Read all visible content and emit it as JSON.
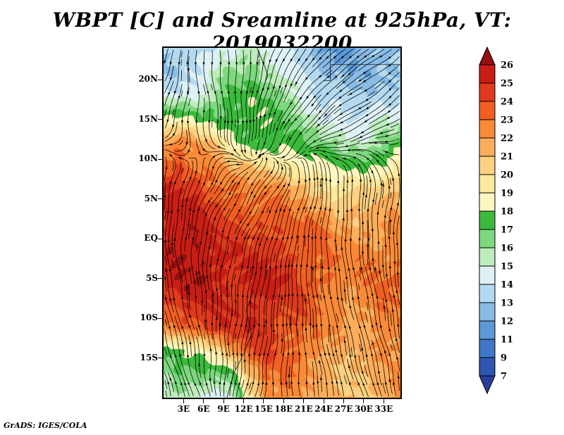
{
  "title": "WBPT [C] and Sreamline at 925hPa, VT: 2019032200",
  "footer": "GrADS: IGES/COLA",
  "chart_data": {
    "type": "heatmap",
    "title": "WBPT [C] and Sreamline at 925hPa, VT: 2019032200",
    "variable": "WBPT [C]",
    "overlay": "streamlines",
    "level": "925hPa",
    "valid_time": "2019032200",
    "x_ticks": [
      "3E",
      "6E",
      "9E",
      "12E",
      "15E",
      "18E",
      "21E",
      "24E",
      "27E",
      "30E",
      "33E"
    ],
    "x_tick_lons": [
      3,
      6,
      9,
      12,
      15,
      18,
      21,
      24,
      27,
      30,
      33
    ],
    "y_ticks": [
      "20N",
      "15N",
      "10N",
      "5N",
      "EQ",
      "5S",
      "10S",
      "15S"
    ],
    "y_tick_lats": [
      20,
      15,
      10,
      5,
      0,
      -5,
      -10,
      -15
    ],
    "lon_range": [
      0,
      35.5
    ],
    "lat_range": [
      -20,
      24
    ],
    "grid_on": false,
    "legend_position": "right",
    "colorbar": {
      "orientation": "vertical",
      "levels": [
        7,
        9,
        11,
        12,
        13,
        14,
        15,
        16,
        17,
        18,
        19,
        20,
        21,
        22,
        23,
        24,
        25,
        26
      ],
      "colors": [
        "#2b3f9b",
        "#2f57b0",
        "#3e77c8",
        "#5c99d8",
        "#88bce6",
        "#b4daf0",
        "#def2f6",
        "#bdecbd",
        "#7ed87e",
        "#3bba3c",
        "#fdf6bf",
        "#fee99c",
        "#fdd180",
        "#fcae5b",
        "#fa8a38",
        "#f15f23",
        "#e0391d",
        "#c91e15",
        "#941110"
      ]
    },
    "grid": {
      "note": "WBPT [C] field, rows top(24N) to bottom(20S), cols 0E to 35E",
      "values": [
        [
          13,
          13,
          13.5,
          14,
          15,
          15.5,
          15,
          14,
          13,
          12.5,
          12,
          12,
          12.5,
          12.5,
          12.5
        ],
        [
          13,
          13.5,
          14,
          15,
          16,
          16.5,
          16,
          15,
          14,
          13,
          12.5,
          12.5,
          12.5,
          13,
          13
        ],
        [
          14,
          14.5,
          15,
          16,
          17,
          17.5,
          17,
          16.5,
          15,
          14,
          13.5,
          13,
          13,
          13.5,
          14
        ],
        [
          18.5,
          18,
          17.5,
          17.5,
          17.5,
          17.5,
          17.5,
          17,
          16,
          15,
          14.5,
          14,
          14,
          14.5,
          15
        ],
        [
          22,
          22.5,
          21.5,
          20,
          18.5,
          17.5,
          17.5,
          17.5,
          17,
          16.5,
          16,
          15.5,
          15.5,
          16,
          17
        ],
        [
          23.5,
          24,
          23,
          22,
          21,
          20.5,
          20,
          19.5,
          19,
          18.5,
          17.5,
          17.5,
          17.5,
          18.5,
          19.5
        ],
        [
          24.5,
          25,
          24.5,
          23.5,
          23,
          22.5,
          22.5,
          22,
          21.5,
          20.5,
          19.5,
          19.5,
          20,
          20.5,
          21
        ],
        [
          25,
          25.5,
          25,
          24.5,
          24,
          23.5,
          23.5,
          23,
          22.5,
          22,
          21.5,
          21,
          21,
          21.5,
          21.5
        ],
        [
          25.5,
          26,
          25.5,
          25,
          24.5,
          24,
          24.5,
          24,
          23.5,
          23,
          22.5,
          22,
          22,
          22,
          22.5
        ],
        [
          25.5,
          26,
          26,
          25.5,
          25,
          24.5,
          25,
          24.5,
          24,
          23.5,
          23,
          22.5,
          22.5,
          22.5,
          23
        ],
        [
          24.5,
          25.5,
          26,
          25.5,
          25,
          25,
          25.5,
          25,
          24,
          23.5,
          23,
          22.5,
          22.5,
          23,
          23
        ],
        [
          24,
          24.5,
          25,
          25,
          24.5,
          25,
          25,
          24.5,
          24,
          23,
          22.5,
          22,
          22.5,
          23,
          23
        ],
        [
          23,
          23.5,
          24,
          24.5,
          24.5,
          25,
          24.5,
          24,
          23.5,
          23,
          22,
          21.5,
          22,
          22.5,
          23
        ],
        [
          17,
          17.5,
          18.5,
          20,
          22,
          23.5,
          24,
          23.5,
          23,
          22.5,
          21.5,
          21,
          21.5,
          22,
          22.5
        ],
        [
          16,
          16.5,
          16.5,
          16,
          17.5,
          21,
          23,
          23,
          22.5,
          22,
          21,
          21,
          21,
          21.5,
          22
        ],
        [
          16,
          16,
          15,
          13.5,
          14.5,
          19.5,
          22,
          22.5,
          22,
          21.5,
          21,
          21,
          21,
          21.5,
          22
        ]
      ]
    },
    "borders": [
      [
        [
          25,
          24
        ],
        [
          25,
          19.9
        ],
        [
          24,
          19.9
        ]
      ],
      [
        [
          25,
          21.9
        ],
        [
          35.5,
          21.9
        ]
      ],
      [
        [
          14,
          24
        ],
        [
          15.2,
          21.6
        ],
        [
          15.6,
          20.5
        ],
        [
          14.6,
          18.2
        ],
        [
          14.2,
          16.5
        ]
      ],
      [
        [
          9.5,
          -20
        ],
        [
          10.5,
          -17
        ],
        [
          12,
          -14.5
        ],
        [
          13.2,
          -12
        ],
        [
          12.4,
          -9
        ],
        [
          13.5,
          -6.5
        ]
      ]
    ],
    "flow": {
      "itcz_lat": 11,
      "north_regime": "northeasterly",
      "south_regime": "southerly-southwesterly"
    }
  }
}
